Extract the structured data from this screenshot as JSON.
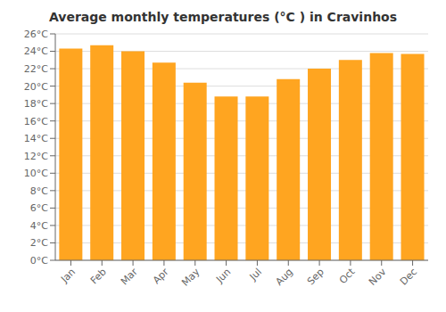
{
  "chart_data": {
    "type": "bar",
    "title": "Average monthly temperatures (°C ) in Cravinhos",
    "categories": [
      "Jan",
      "Feb",
      "Mar",
      "Apr",
      "May",
      "Jun",
      "Jul",
      "Aug",
      "Sep",
      "Oct",
      "Nov",
      "Dec"
    ],
    "values": [
      24.3,
      24.7,
      24.0,
      22.7,
      20.4,
      18.8,
      18.8,
      20.8,
      22.0,
      23.0,
      23.8,
      23.7
    ],
    "color": "#FFA520",
    "ylim": [
      0,
      26
    ],
    "yticks": [
      {
        "value": 0,
        "label": "0°C"
      },
      {
        "value": 2,
        "label": "2°C"
      },
      {
        "value": 4,
        "label": "4°C"
      },
      {
        "value": 6,
        "label": "6°C"
      },
      {
        "value": 8,
        "label": "8°C"
      },
      {
        "value": 10,
        "label": "10°C"
      },
      {
        "value": 12,
        "label": "12°C"
      },
      {
        "value": 14,
        "label": "14°C"
      },
      {
        "value": 16,
        "label": "16°C"
      },
      {
        "value": 18,
        "label": "18°C"
      },
      {
        "value": 20,
        "label": "20°C"
      },
      {
        "value": 22,
        "label": "22°C"
      },
      {
        "value": 24,
        "label": "24°C"
      },
      {
        "value": 26,
        "label": "26°C"
      }
    ],
    "grid": true
  }
}
